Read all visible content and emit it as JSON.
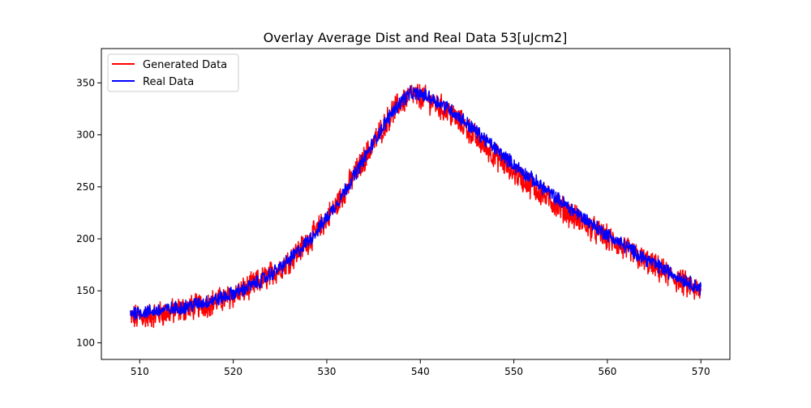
{
  "chart_data": {
    "type": "line",
    "title": "Overlay Average Dist and Real Data 53[uJcm2]",
    "xlabel": "",
    "ylabel": "",
    "xlim": [
      505.9,
      573.1
    ],
    "ylim": [
      84,
      383
    ],
    "grid": false,
    "legend_position": "top-left",
    "x_ticks": [
      510,
      520,
      530,
      540,
      550,
      560,
      570
    ],
    "y_ticks": [
      100,
      150,
      200,
      250,
      300,
      350
    ],
    "x_range": [
      509,
      570
    ],
    "series": [
      {
        "name": "Generated Data",
        "color": "#ff0000",
        "noise": 11,
        "points": [
          [
            509,
            124
          ],
          [
            511,
            126
          ],
          [
            513,
            129
          ],
          [
            515,
            133
          ],
          [
            517,
            137
          ],
          [
            519,
            142
          ],
          [
            521,
            150
          ],
          [
            523,
            160
          ],
          [
            525,
            172
          ],
          [
            527,
            188
          ],
          [
            529,
            208
          ],
          [
            531,
            232
          ],
          [
            533,
            262
          ],
          [
            535,
            292
          ],
          [
            537,
            322
          ],
          [
            538,
            332
          ],
          [
            539,
            338
          ],
          [
            540,
            337
          ],
          [
            541,
            333
          ],
          [
            543,
            322
          ],
          [
            545,
            306
          ],
          [
            547,
            288
          ],
          [
            549,
            272
          ],
          [
            551,
            257
          ],
          [
            553,
            243
          ],
          [
            555,
            230
          ],
          [
            557,
            218
          ],
          [
            559,
            206
          ],
          [
            561,
            195
          ],
          [
            563,
            184
          ],
          [
            565,
            173
          ],
          [
            567,
            163
          ],
          [
            569,
            153
          ],
          [
            570,
            148
          ]
        ]
      },
      {
        "name": "Real Data",
        "color": "#0000ff",
        "noise": 6,
        "points": [
          [
            509,
            129
          ],
          [
            511,
            130
          ],
          [
            513,
            132
          ],
          [
            515,
            135
          ],
          [
            517,
            139
          ],
          [
            519,
            144
          ],
          [
            521,
            151
          ],
          [
            523,
            160
          ],
          [
            525,
            172
          ],
          [
            527,
            188
          ],
          [
            529,
            208
          ],
          [
            531,
            233
          ],
          [
            533,
            262
          ],
          [
            535,
            293
          ],
          [
            537,
            322
          ],
          [
            538,
            333
          ],
          [
            539,
            340
          ],
          [
            540,
            339
          ],
          [
            541,
            336
          ],
          [
            543,
            326
          ],
          [
            545,
            311
          ],
          [
            547,
            295
          ],
          [
            549,
            279
          ],
          [
            551,
            264
          ],
          [
            553,
            250
          ],
          [
            555,
            236
          ],
          [
            557,
            223
          ],
          [
            559,
            210
          ],
          [
            561,
            198
          ],
          [
            563,
            187
          ],
          [
            565,
            176
          ],
          [
            567,
            166
          ],
          [
            569,
            157
          ],
          [
            570,
            152
          ]
        ]
      }
    ]
  }
}
